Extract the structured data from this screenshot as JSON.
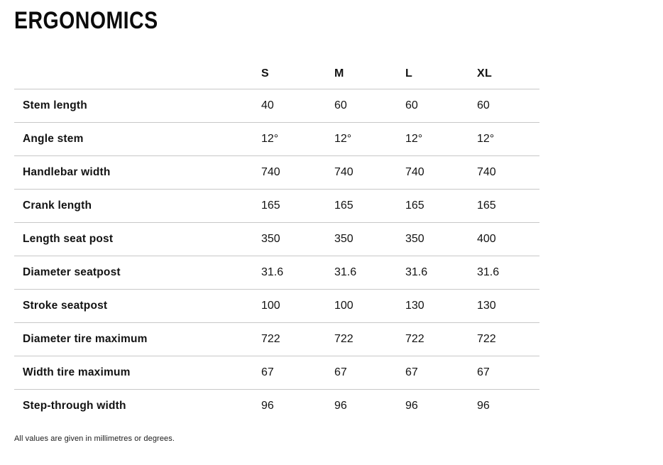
{
  "page": {
    "title": "ERGONOMICS",
    "footnote": "All values are given in millimetres or degrees."
  },
  "colors": {
    "text": "#111111",
    "divider": "#c8c8c8",
    "background": "#ffffff"
  },
  "table": {
    "columns": [
      "S",
      "M",
      "L",
      "XL"
    ],
    "rows": [
      {
        "label": "Stem length",
        "values": [
          "40",
          "60",
          "60",
          "60"
        ]
      },
      {
        "label": "Angle stem",
        "values": [
          "12°",
          "12°",
          "12°",
          "12°"
        ]
      },
      {
        "label": "Handlebar width",
        "values": [
          "740",
          "740",
          "740",
          "740"
        ]
      },
      {
        "label": "Crank length",
        "values": [
          "165",
          "165",
          "165",
          "165"
        ]
      },
      {
        "label": "Length seat post",
        "values": [
          "350",
          "350",
          "350",
          "400"
        ]
      },
      {
        "label": "Diameter seatpost",
        "values": [
          "31.6",
          "31.6",
          "31.6",
          "31.6"
        ]
      },
      {
        "label": "Stroke seatpost",
        "values": [
          "100",
          "100",
          "130",
          "130"
        ]
      },
      {
        "label": "Diameter tire maximum",
        "values": [
          "722",
          "722",
          "722",
          "722"
        ]
      },
      {
        "label": "Width tire maximum",
        "values": [
          "67",
          "67",
          "67",
          "67"
        ]
      },
      {
        "label": "Step-through width",
        "values": [
          "96",
          "96",
          "96",
          "96"
        ]
      }
    ]
  }
}
